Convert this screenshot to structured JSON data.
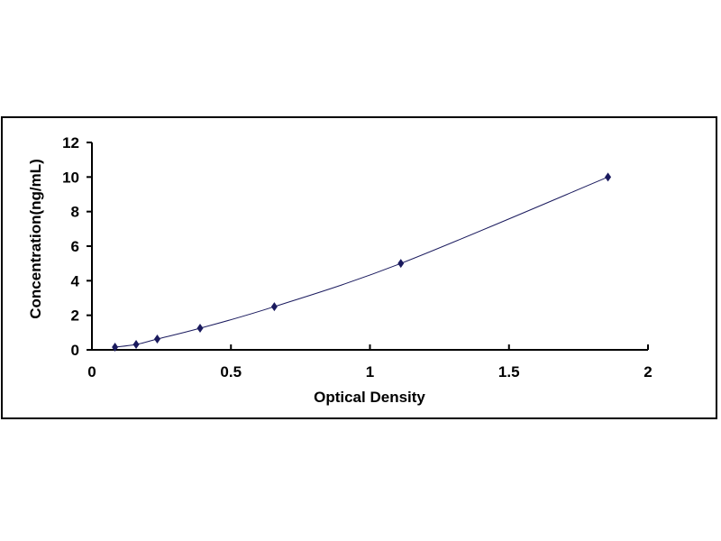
{
  "chart_data": {
    "type": "scatter",
    "title": "",
    "xlabel": "Optical Density",
    "ylabel": "Concentration(ng/mL)",
    "xlim": [
      0,
      2
    ],
    "ylim": [
      0,
      12
    ],
    "xticks": [
      "0",
      "0.5",
      "1",
      "1.5",
      "2"
    ],
    "yticks": [
      "0",
      "2",
      "4",
      "6",
      "8",
      "10",
      "12"
    ],
    "grid": false,
    "legend": "none",
    "trendline": "smooth curve",
    "marker": "diamond",
    "color": "#1a1a5e",
    "points": [
      {
        "x": 0.083,
        "y": 0.156
      },
      {
        "x": 0.159,
        "y": 0.312
      },
      {
        "x": 0.235,
        "y": 0.625
      },
      {
        "x": 0.389,
        "y": 1.25
      },
      {
        "x": 0.656,
        "y": 2.5
      },
      {
        "x": 1.111,
        "y": 5
      },
      {
        "x": 1.856,
        "y": 10
      }
    ]
  }
}
